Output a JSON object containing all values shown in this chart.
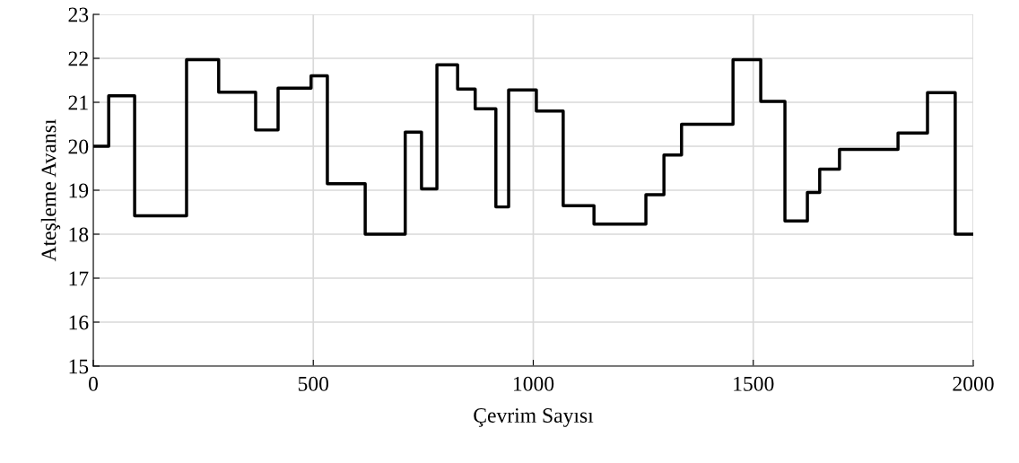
{
  "chart_data": {
    "type": "step",
    "xlabel": "Çevrim Sayısı",
    "ylabel": "Ateşleme Avansı",
    "x": [
      0,
      35,
      94,
      212,
      285,
      369,
      420,
      495,
      532,
      618,
      709,
      746,
      781,
      828,
      868,
      915,
      944,
      1007,
      1068,
      1138,
      1256,
      1297,
      1337,
      1454,
      1517,
      1572,
      1623,
      1651,
      1696,
      1829,
      1896,
      1959,
      2000
    ],
    "series": [
      {
        "color": "#000000",
        "values": [
          20.0,
          21.15,
          18.42,
          21.97,
          21.23,
          20.37,
          21.32,
          21.6,
          19.15,
          18.0,
          20.32,
          19.03,
          21.85,
          21.3,
          20.85,
          18.62,
          21.28,
          20.8,
          18.65,
          18.23,
          18.9,
          19.8,
          20.5,
          21.97,
          21.02,
          18.3,
          18.95,
          19.48,
          19.93,
          20.3,
          21.22,
          18.0,
          18.0
        ]
      }
    ],
    "xlim": [
      0,
      2000
    ],
    "xticks": [
      0,
      500,
      1000,
      1500,
      2000
    ],
    "ylim": [
      15,
      23
    ],
    "yticks": [
      15,
      16,
      17,
      18,
      19,
      20,
      21,
      22,
      23
    ],
    "grid": true
  }
}
